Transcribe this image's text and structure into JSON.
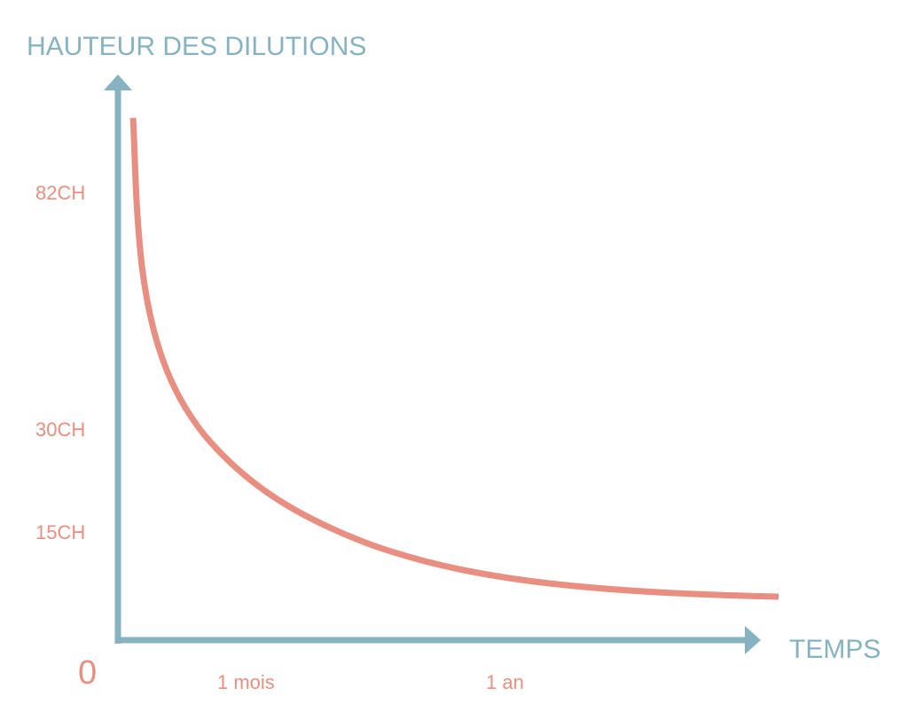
{
  "title": "HAUTEUR DES DILUTIONS",
  "x_axis_label": "TEMPS",
  "origin_label": "0",
  "y_labels": [
    "82CH",
    "30CH",
    "15CH"
  ],
  "x_labels": [
    "1 mois",
    "1 an"
  ]
}
